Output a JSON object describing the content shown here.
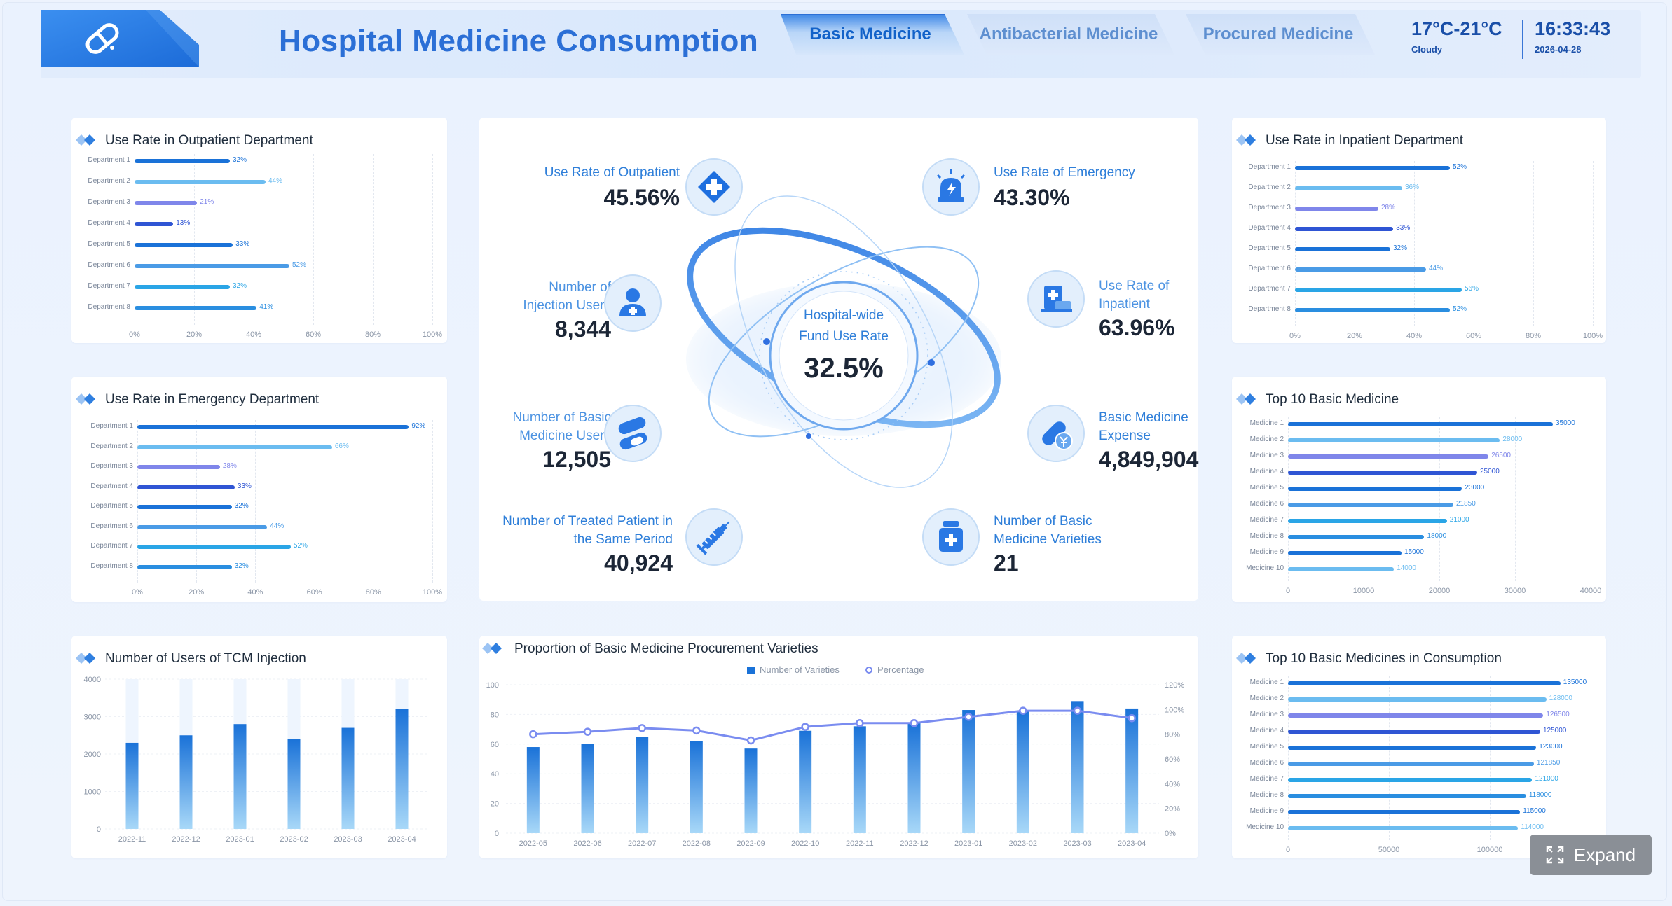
{
  "header": {
    "title": "Hospital Medicine Consumption",
    "tabs": [
      {
        "label": "Basic Medicine",
        "active": true
      },
      {
        "label": "Antibacterial Medicine",
        "active": false
      },
      {
        "label": "Procured Medicine",
        "active": false
      }
    ],
    "weather": {
      "temp": "17°C-21°C",
      "condition": "Cloudy"
    },
    "clock": {
      "time": "16:33:43",
      "date": "2026-04-28"
    }
  },
  "panels": {
    "outpatient": {
      "title": "Use Rate in Outpatient Department"
    },
    "emergency": {
      "title": "Use Rate in Emergency Department"
    },
    "tcm": {
      "title": "Number of Users of TCM Injection"
    },
    "procurement": {
      "title": "Proportion of Basic Medicine Procurement Varieties"
    },
    "inpatient": {
      "title": "Use Rate in Inpatient Department"
    },
    "top10": {
      "title": "Top 10 Basic Medicine"
    },
    "top10consumption": {
      "title": "Top 10 Basic Medicines in Consumption"
    }
  },
  "center": {
    "core_title_1": "Hospital-wide",
    "core_title_2": "Fund Use Rate",
    "core_value": "32.5%",
    "metrics": {
      "outpatient": {
        "title1": "Use Rate of Outpatient",
        "title2": "",
        "value": "45.56%",
        "icon": "plus-medical-icon"
      },
      "injection": {
        "title1": "Number of",
        "title2": "Injection Users",
        "value": "8,344",
        "icon": "nurse-icon"
      },
      "basic_users": {
        "title1": "Number of Basic",
        "title2": "Medicine Users",
        "value": "12,505",
        "icon": "pills-icon"
      },
      "treated": {
        "title1": "Number of Treated Patient in",
        "title2": "the Same Period",
        "value": "40,924",
        "icon": "syringe-icon"
      },
      "emergency": {
        "title1": "Use Rate of Emergency",
        "title2": "",
        "value": "43.30%",
        "icon": "siren-icon"
      },
      "inpatient": {
        "title1": "Use Rate of",
        "title2": "Inpatient",
        "value": "63.96%",
        "icon": "hospital-bed-icon"
      },
      "expense": {
        "title1": "Basic Medicine",
        "title2": "Expense",
        "value": "4,849,904",
        "icon": "capsule-coin-icon"
      },
      "varieties": {
        "title1": "Number of Basic",
        "title2": "Medicine Varieties",
        "value": "21",
        "icon": "medicine-bottle-icon"
      }
    }
  },
  "expand": {
    "label": "Expand"
  },
  "colors": {
    "title": "#2b6fd6",
    "accent": "#2f7fd9",
    "bar_dark": "#1a72d8",
    "bar_light": "#6bbcf0",
    "bar_purple": "#7f86ea",
    "bar_navy": "#2f55d4",
    "line": "#7a8cf0"
  },
  "chart_data": [
    {
      "id": "outpatient",
      "type": "bar",
      "orientation": "horizontal",
      "categories": [
        "Department 1",
        "Department 2",
        "Department 3",
        "Department 4",
        "Department 5",
        "Department 6",
        "Department 7",
        "Department 8"
      ],
      "values": [
        32,
        44,
        21,
        13,
        33,
        52,
        32,
        41
      ],
      "value_labels": [
        "32%",
        "44%",
        "21%",
        "13%",
        "33%",
        "52%",
        "32%",
        "41%"
      ],
      "xlim": [
        0,
        100
      ],
      "xticks": [
        "0%",
        "20%",
        "40%",
        "60%",
        "80%",
        "100%"
      ]
    },
    {
      "id": "emergency",
      "type": "bar",
      "orientation": "horizontal",
      "categories": [
        "Department 1",
        "Department 2",
        "Department 3",
        "Department 4",
        "Department 5",
        "Department 6",
        "Department 7",
        "Department 8"
      ],
      "values": [
        92,
        66,
        28,
        33,
        32,
        44,
        52,
        32
      ],
      "value_labels": [
        "92%",
        "66%",
        "28%",
        "33%",
        "32%",
        "44%",
        "52%",
        "32%"
      ],
      "xlim": [
        0,
        100
      ],
      "xticks": [
        "0%",
        "20%",
        "40%",
        "60%",
        "80%",
        "100%"
      ]
    },
    {
      "id": "inpatient",
      "type": "bar",
      "orientation": "horizontal",
      "categories": [
        "Department 1",
        "Department 2",
        "Department 3",
        "Department 4",
        "Department 5",
        "Department 6",
        "Department 7",
        "Department 8"
      ],
      "values": [
        52,
        36,
        28,
        33,
        32,
        44,
        56,
        52
      ],
      "value_labels": [
        "52%",
        "36%",
        "28%",
        "33%",
        "32%",
        "44%",
        "56%",
        "52%"
      ],
      "xlim": [
        0,
        100
      ],
      "xticks": [
        "0%",
        "20%",
        "40%",
        "60%",
        "80%",
        "100%"
      ]
    },
    {
      "id": "top10",
      "type": "bar",
      "orientation": "horizontal",
      "categories": [
        "Medicine 1",
        "Medicine 2",
        "Medicine 3",
        "Medicine 4",
        "Medicine 5",
        "Medicine 6",
        "Medicine 7",
        "Medicine 8",
        "Medicine 9",
        "Medicine 10"
      ],
      "values": [
        35000,
        28000,
        26500,
        25000,
        23000,
        21850,
        21000,
        18000,
        15000,
        14000
      ],
      "value_labels": [
        "35000",
        "28000",
        "26500",
        "25000",
        "23000",
        "21850",
        "21000",
        "18000",
        "15000",
        "14000"
      ],
      "xlim": [
        0,
        40000
      ],
      "xticks": [
        "0",
        "10000",
        "20000",
        "30000",
        "40000"
      ]
    },
    {
      "id": "top10consumption",
      "type": "bar",
      "orientation": "horizontal",
      "categories": [
        "Medicine 1",
        "Medicine 2",
        "Medicine 3",
        "Medicine 4",
        "Medicine 5",
        "Medicine 6",
        "Medicine 7",
        "Medicine 8",
        "Medicine 9",
        "Medicine 10"
      ],
      "values": [
        135000,
        128000,
        126500,
        125000,
        123000,
        121850,
        121000,
        118000,
        115000,
        114000
      ],
      "value_labels": [
        "135000",
        "128000",
        "126500",
        "125000",
        "123000",
        "121850",
        "121000",
        "118000",
        "115000",
        "114000"
      ],
      "xlim": [
        0,
        150000
      ],
      "xticks": [
        "0",
        "50000",
        "100000",
        "150000"
      ]
    },
    {
      "id": "tcm",
      "type": "bar",
      "categories": [
        "2022-11",
        "2022-12",
        "2023-01",
        "2023-02",
        "2023-03",
        "2023-04"
      ],
      "values": [
        2300,
        2500,
        2800,
        2400,
        2700,
        3200
      ],
      "ylim": [
        0,
        4000
      ],
      "yticks": [
        "0",
        "1000",
        "2000",
        "3000",
        "4000"
      ]
    },
    {
      "id": "procurement",
      "type": "bar",
      "categories": [
        "2022-05",
        "2022-06",
        "2022-07",
        "2022-08",
        "2022-09",
        "2022-10",
        "2022-11",
        "2022-12",
        "2023-01",
        "2023-02",
        "2023-03",
        "2023-04"
      ],
      "series": [
        {
          "name": "Number of Varieties",
          "type": "bar",
          "values": [
            58,
            60,
            65,
            62,
            57,
            69,
            72,
            74,
            83,
            82,
            89,
            84
          ]
        },
        {
          "name": "Percentage",
          "type": "line",
          "values": [
            80,
            82,
            85,
            83,
            75,
            86,
            89,
            89,
            94,
            99,
            99,
            93
          ]
        }
      ],
      "ylim": [
        0,
        100
      ],
      "yticks": [
        "0",
        "20",
        "40",
        "60",
        "80",
        "100"
      ],
      "y2lim": [
        0,
        120
      ],
      "y2ticks": [
        "0%",
        "20%",
        "40%",
        "60%",
        "80%",
        "100%",
        "120%"
      ]
    }
  ]
}
